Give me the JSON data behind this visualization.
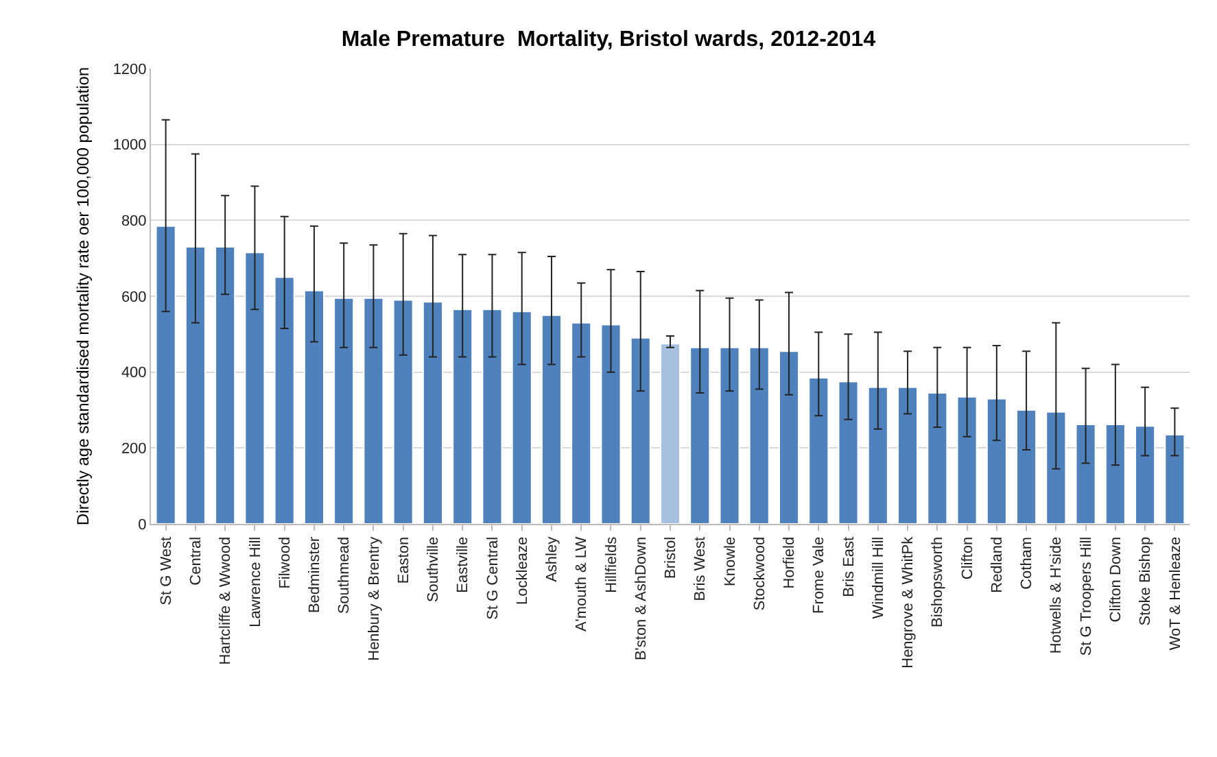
{
  "chart_data": {
    "type": "bar",
    "title": "Male Premature  Mortality, Bristol wards, 2012-2014",
    "ylabel": "Directly age standardised mortality rate oer 100,000 population",
    "categories": [
      "St G West",
      "Central",
      "Hartcliffe & Wwood",
      "Lawrence Hill",
      "Filwood",
      "Bedminster",
      "Southmead",
      "Henbury & Brentry",
      "Easton",
      "Southville",
      "Eastville",
      "St G Central",
      "Lockleaze",
      "Ashley",
      "A'mouth & LW",
      "Hillfields",
      "B'ston & AshDown",
      "Bristol",
      "Bris West",
      "Knowle",
      "Stockwood",
      "Horfield",
      "Frome Vale",
      "Bris East",
      "Windmill Hill",
      "Hengrove & WhitPk",
      "Bishopsworth",
      "Clifton",
      "Redland",
      "Cotham",
      "Hotwells & H'side",
      "St G Troopers Hill",
      "Clifton Down",
      "Stoke Bishop",
      "WoT & Henleaze"
    ],
    "values": [
      785,
      730,
      730,
      715,
      650,
      615,
      595,
      595,
      590,
      585,
      565,
      565,
      560,
      550,
      530,
      525,
      490,
      475,
      465,
      465,
      465,
      455,
      385,
      375,
      360,
      360,
      345,
      335,
      330,
      300,
      295,
      262,
      262,
      258,
      235
    ],
    "errors": [
      [
        560,
        1065
      ],
      [
        530,
        975
      ],
      [
        605,
        865
      ],
      [
        565,
        890
      ],
      [
        515,
        810
      ],
      [
        480,
        785
      ],
      [
        465,
        740
      ],
      [
        465,
        735
      ],
      [
        445,
        765
      ],
      [
        440,
        760
      ],
      [
        440,
        710
      ],
      [
        440,
        710
      ],
      [
        420,
        715
      ],
      [
        420,
        705
      ],
      [
        440,
        635
      ],
      [
        400,
        670
      ],
      [
        350,
        665
      ],
      [
        465,
        495
      ],
      [
        345,
        615
      ],
      [
        350,
        595
      ],
      [
        355,
        590
      ],
      [
        340,
        610
      ],
      [
        285,
        505
      ],
      [
        275,
        500
      ],
      [
        250,
        505
      ],
      [
        290,
        455
      ],
      [
        255,
        465
      ],
      [
        230,
        465
      ],
      [
        220,
        470
      ],
      [
        195,
        455
      ],
      [
        145,
        530
      ],
      [
        160,
        410
      ],
      [
        155,
        420
      ],
      [
        180,
        360
      ],
      [
        180,
        305
      ]
    ],
    "colors": [
      "#4f81bd",
      "#4f81bd",
      "#4f81bd",
      "#4f81bd",
      "#4f81bd",
      "#4f81bd",
      "#4f81bd",
      "#4f81bd",
      "#4f81bd",
      "#4f81bd",
      "#4f81bd",
      "#4f81bd",
      "#4f81bd",
      "#4f81bd",
      "#4f81bd",
      "#4f81bd",
      "#4f81bd",
      "#a7c0e0",
      "#4f81bd",
      "#4f81bd",
      "#4f81bd",
      "#4f81bd",
      "#4f81bd",
      "#4f81bd",
      "#4f81bd",
      "#4f81bd",
      "#4f81bd",
      "#4f81bd",
      "#4f81bd",
      "#4f81bd",
      "#4f81bd",
      "#4f81bd",
      "#4f81bd",
      "#4f81bd",
      "#4f81bd"
    ],
    "ylim": [
      0,
      1200
    ],
    "yticks": [
      0,
      200,
      400,
      600,
      800,
      1000,
      1200
    ],
    "grid": "y"
  }
}
